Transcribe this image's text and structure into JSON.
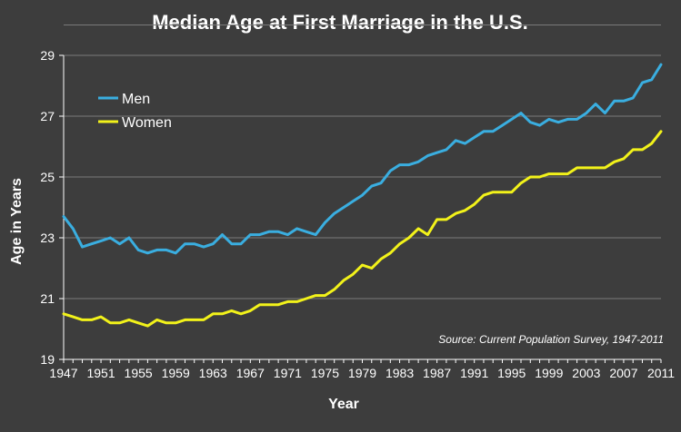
{
  "chart_data": {
    "type": "line",
    "title": "Median Age at First Marriage in the U.S.",
    "xlabel": "Year",
    "ylabel": "Age in Years",
    "source": "Source: Current Population Survey, 1947-2011",
    "xlim": [
      1947,
      2011
    ],
    "ylim": [
      19,
      29
    ],
    "yticks": [
      "19",
      "21",
      "23",
      "25",
      "27",
      "29"
    ],
    "xticks": [
      "1947",
      "1951",
      "1955",
      "1959",
      "1963",
      "1967",
      "1971",
      "1975",
      "1979",
      "1983",
      "1987",
      "1991",
      "1995",
      "1999",
      "2003",
      "2007",
      "2011"
    ],
    "grid": true,
    "legend_position": "top-left",
    "x": [
      1947,
      1948,
      1949,
      1950,
      1951,
      1952,
      1953,
      1954,
      1955,
      1956,
      1957,
      1958,
      1959,
      1960,
      1961,
      1962,
      1963,
      1964,
      1965,
      1966,
      1967,
      1968,
      1969,
      1970,
      1971,
      1972,
      1973,
      1974,
      1975,
      1976,
      1977,
      1978,
      1979,
      1980,
      1981,
      1982,
      1983,
      1984,
      1985,
      1986,
      1987,
      1988,
      1989,
      1990,
      1991,
      1992,
      1993,
      1994,
      1995,
      1996,
      1997,
      1998,
      1999,
      2000,
      2001,
      2002,
      2003,
      2004,
      2005,
      2006,
      2007,
      2008,
      2009,
      2010,
      2011
    ],
    "series": [
      {
        "name": "Men",
        "color": "#3aaee0",
        "values": [
          23.7,
          23.3,
          22.7,
          22.8,
          22.9,
          23.0,
          22.8,
          23.0,
          22.6,
          22.5,
          22.6,
          22.6,
          22.5,
          22.8,
          22.8,
          22.7,
          22.8,
          23.1,
          22.8,
          22.8,
          23.1,
          23.1,
          23.2,
          23.2,
          23.1,
          23.3,
          23.2,
          23.1,
          23.5,
          23.8,
          24.0,
          24.2,
          24.4,
          24.7,
          24.8,
          25.2,
          25.4,
          25.4,
          25.5,
          25.7,
          25.8,
          25.9,
          26.2,
          26.1,
          26.3,
          26.5,
          26.5,
          26.7,
          26.9,
          27.1,
          26.8,
          26.7,
          26.9,
          26.8,
          26.9,
          26.9,
          27.1,
          27.4,
          27.1,
          27.5,
          27.5,
          27.6,
          28.1,
          28.2,
          28.7
        ]
      },
      {
        "name": "Women",
        "color": "#f2f21a",
        "values": [
          20.5,
          20.4,
          20.3,
          20.3,
          20.4,
          20.2,
          20.2,
          20.3,
          20.2,
          20.1,
          20.3,
          20.2,
          20.2,
          20.3,
          20.3,
          20.3,
          20.5,
          20.5,
          20.6,
          20.5,
          20.6,
          20.8,
          20.8,
          20.8,
          20.9,
          20.9,
          21.0,
          21.1,
          21.1,
          21.3,
          21.6,
          21.8,
          22.1,
          22.0,
          22.3,
          22.5,
          22.8,
          23.0,
          23.3,
          23.1,
          23.6,
          23.6,
          23.8,
          23.9,
          24.1,
          24.4,
          24.5,
          24.5,
          24.5,
          24.8,
          25.0,
          25.0,
          25.1,
          25.1,
          25.1,
          25.3,
          25.3,
          25.3,
          25.3,
          25.5,
          25.6,
          25.9,
          25.9,
          26.1,
          26.5
        ]
      }
    ]
  }
}
